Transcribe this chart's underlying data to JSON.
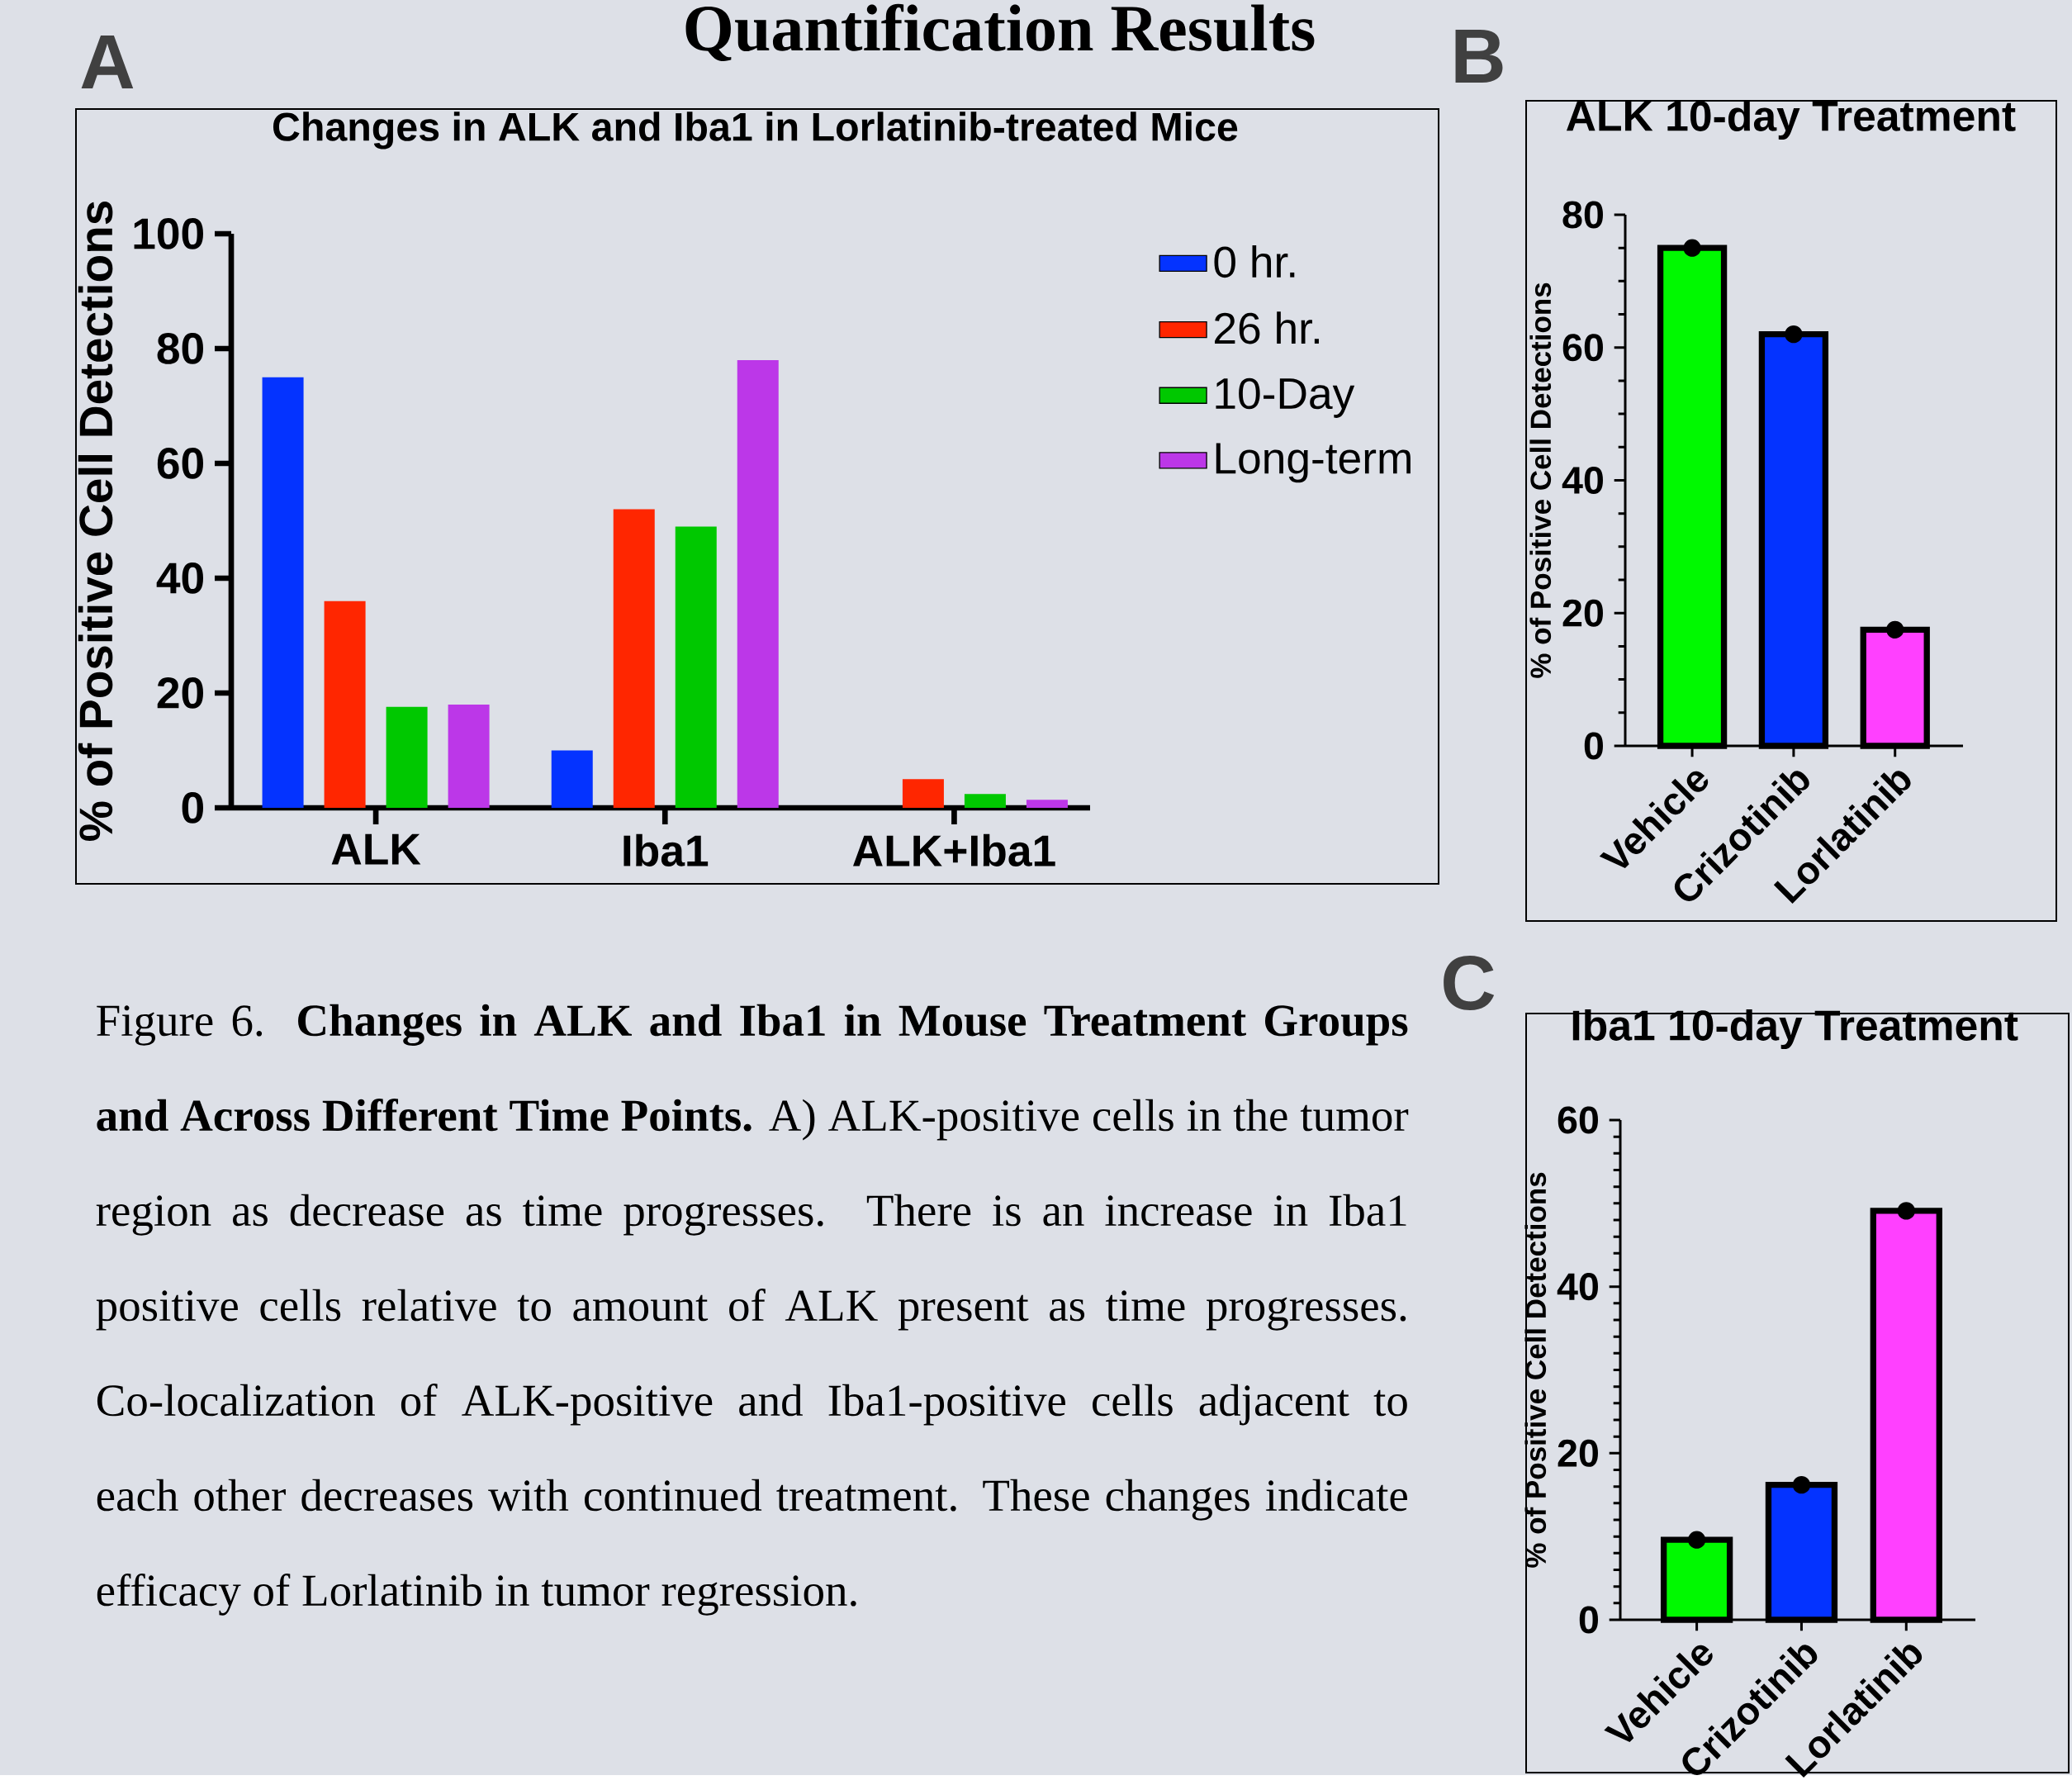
{
  "chart_data": [
    {
      "type": "bar",
      "title": "Changes in ALK and Iba1 in Lorlatinib-treated Mice",
      "ylabel": "% of Positive Cell Detections",
      "categories": [
        "ALK",
        "Iba1",
        "ALK+Iba1"
      ],
      "series": [
        {
          "name": "0 hr.",
          "color": "#0433ff",
          "values": [
            75,
            10,
            null
          ]
        },
        {
          "name": "26 hr.",
          "color": "#ff2600",
          "values": [
            36,
            52,
            5
          ]
        },
        {
          "name": "10-Day",
          "color": "#00c800",
          "values": [
            17.6,
            49,
            2.4
          ]
        },
        {
          "name": "Long-term",
          "color": "#bc37e8",
          "values": [
            18,
            78,
            1.4
          ]
        }
      ],
      "ylim": [
        0,
        100
      ],
      "yticks": [
        0,
        20,
        40,
        60,
        80,
        100
      ],
      "legend": "right",
      "annotations": [
        "A",
        "Quantification Results",
        "Figure 6. **Changes in ALK and Iba1 in Mouse Treatment Groups and Across Different Time Points.** A) ALK-positive cells in the tumor region as decrease as time progresses. There is an increase in Iba1 positive cells relative to amount of ALK present as time progresses. Co-localization of ALK-positive and Iba1-positive cells adjacent to each other decreases with continued treatment. These changes indicate efficacy of Lorlatinib in tumor regression."
      ]
    },
    {
      "type": "bar",
      "title": "ALK 10-day Treatment",
      "ylabel": "% of Positive Cell Detections",
      "categories": [
        "Vehicle",
        "Crizotinib",
        "Lorlatinib"
      ],
      "series": [
        {
          "type": "bar",
          "colors": [
            "#00f900",
            "#0433ff",
            "#ff40ff"
          ],
          "values": [
            75,
            62,
            17.5
          ]
        },
        {
          "type": "scatter",
          "x": [
            "Vehicle",
            "Crizotinib",
            "Lorlatinib"
          ],
          "color": "#000000",
          "values": [
            75,
            62,
            17.5
          ]
        }
      ],
      "ylim": [
        0,
        80
      ],
      "yticks": [
        0,
        20,
        40,
        60,
        80
      ],
      "annotations": [
        "B"
      ]
    },
    {
      "type": "bar",
      "title": "Iba1 10-day Treatment",
      "ylabel": "% of Positive Cell Detections",
      "categories": [
        "Vehicle",
        "Crizotinib",
        "Lorlatinib"
      ],
      "series": [
        {
          "type": "bar",
          "colors": [
            "#00f900",
            "#0433ff",
            "#ff40ff"
          ],
          "values": [
            9.6,
            16.2,
            49.1
          ]
        },
        {
          "type": "scatter",
          "x": [
            "Vehicle",
            "Crizotinib",
            "Lorlatinib"
          ],
          "color": "#000000",
          "values": [
            9.6,
            16.2,
            49.1
          ]
        }
      ],
      "ylim": [
        0,
        60
      ],
      "yticks": [
        0,
        20,
        40,
        60
      ],
      "annotations": [
        "C"
      ]
    }
  ]
}
